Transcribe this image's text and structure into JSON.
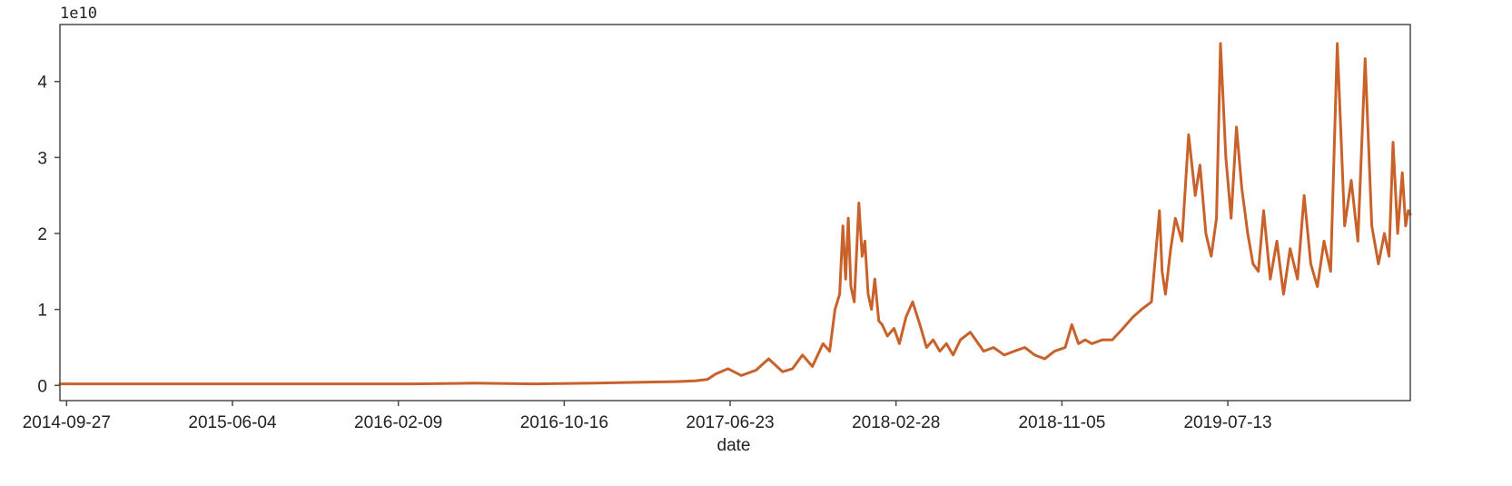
{
  "chart_data": {
    "type": "line",
    "title": "",
    "xlabel": "date",
    "ylabel": "",
    "offset_label": "1e10",
    "y_scale": 10000000000,
    "xlim": [
      "2014-09-17",
      "2020-04-13"
    ],
    "ylim": [
      -0.2,
      4.75
    ],
    "x_ticks": [
      "2014-09-27",
      "2015-06-04",
      "2016-02-09",
      "2016-10-16",
      "2017-06-23",
      "2018-02-28",
      "2018-11-05",
      "2019-07-13"
    ],
    "y_ticks": [
      0,
      1,
      2,
      3,
      4
    ],
    "grid": false,
    "line_color": "#c8612a",
    "series": [
      {
        "x": [
          "2014-09-17",
          "2014-12-01",
          "2015-03-01",
          "2015-06-01",
          "2015-09-01",
          "2015-12-01",
          "2016-03-01",
          "2016-06-01",
          "2016-09-01",
          "2016-12-01",
          "2017-02-01",
          "2017-04-01",
          "2017-05-01",
          "2017-05-20",
          "2017-06-01",
          "2017-06-20",
          "2017-07-10",
          "2017-08-01",
          "2017-08-20",
          "2017-09-10",
          "2017-09-25",
          "2017-10-10",
          "2017-10-25",
          "2017-11-10",
          "2017-11-20",
          "2017-11-28",
          "2017-12-05",
          "2017-12-10",
          "2017-12-14",
          "2017-12-18",
          "2017-12-22",
          "2017-12-27",
          "2018-01-03",
          "2018-01-08",
          "2018-01-12",
          "2018-01-17",
          "2018-01-22",
          "2018-01-27",
          "2018-02-02",
          "2018-02-07",
          "2018-02-15",
          "2018-02-25",
          "2018-03-05",
          "2018-03-15",
          "2018-03-25",
          "2018-04-05",
          "2018-04-15",
          "2018-04-25",
          "2018-05-05",
          "2018-05-15",
          "2018-05-25",
          "2018-06-05",
          "2018-06-20",
          "2018-07-10",
          "2018-07-25",
          "2018-08-10",
          "2018-08-25",
          "2018-09-10",
          "2018-09-25",
          "2018-10-10",
          "2018-10-25",
          "2018-11-10",
          "2018-11-20",
          "2018-11-30",
          "2018-12-10",
          "2018-12-20",
          "2019-01-05",
          "2019-01-20",
          "2019-02-05",
          "2019-02-20",
          "2019-03-05",
          "2019-03-20",
          "2019-04-01",
          "2019-04-05",
          "2019-04-10",
          "2019-04-18",
          "2019-04-25",
          "2019-05-05",
          "2019-05-15",
          "2019-05-25",
          "2019-06-01",
          "2019-06-10",
          "2019-06-18",
          "2019-06-26",
          "2019-07-02",
          "2019-07-10",
          "2019-07-18",
          "2019-07-26",
          "2019-08-03",
          "2019-08-12",
          "2019-08-20",
          "2019-08-28",
          "2019-09-05",
          "2019-09-15",
          "2019-09-25",
          "2019-10-05",
          "2019-10-15",
          "2019-10-26",
          "2019-11-05",
          "2019-11-15",
          "2019-11-25",
          "2019-12-05",
          "2019-12-15",
          "2019-12-25",
          "2020-01-05",
          "2020-01-15",
          "2020-01-25",
          "2020-02-05",
          "2020-02-15",
          "2020-02-25",
          "2020-03-05",
          "2020-03-12",
          "2020-03-18",
          "2020-03-25",
          "2020-04-01",
          "2020-04-06",
          "2020-04-10",
          "2020-04-13"
        ],
        "y": [
          0.02,
          0.02,
          0.02,
          0.02,
          0.02,
          0.02,
          0.02,
          0.03,
          0.02,
          0.03,
          0.04,
          0.05,
          0.06,
          0.08,
          0.15,
          0.22,
          0.13,
          0.2,
          0.35,
          0.18,
          0.22,
          0.4,
          0.25,
          0.55,
          0.45,
          1.0,
          1.2,
          2.1,
          1.4,
          2.2,
          1.3,
          1.1,
          2.4,
          1.7,
          1.9,
          1.2,
          1.0,
          1.4,
          0.85,
          0.8,
          0.65,
          0.75,
          0.55,
          0.9,
          1.1,
          0.8,
          0.5,
          0.6,
          0.45,
          0.55,
          0.4,
          0.6,
          0.7,
          0.45,
          0.5,
          0.4,
          0.45,
          0.5,
          0.4,
          0.35,
          0.45,
          0.5,
          0.8,
          0.55,
          0.6,
          0.55,
          0.6,
          0.6,
          0.75,
          0.9,
          1.0,
          1.1,
          2.3,
          1.5,
          1.2,
          1.8,
          2.2,
          1.9,
          3.3,
          2.5,
          2.9,
          2.0,
          1.7,
          2.2,
          4.5,
          3.0,
          2.2,
          3.4,
          2.6,
          2.0,
          1.6,
          1.5,
          2.3,
          1.4,
          1.9,
          1.2,
          1.8,
          1.4,
          2.5,
          1.6,
          1.3,
          1.9,
          1.5,
          4.5,
          2.1,
          2.7,
          1.9,
          4.3,
          2.1,
          1.6,
          2.0,
          1.7,
          3.2,
          2.0,
          2.8,
          2.1,
          2.3,
          2.25
        ]
      }
    ]
  }
}
